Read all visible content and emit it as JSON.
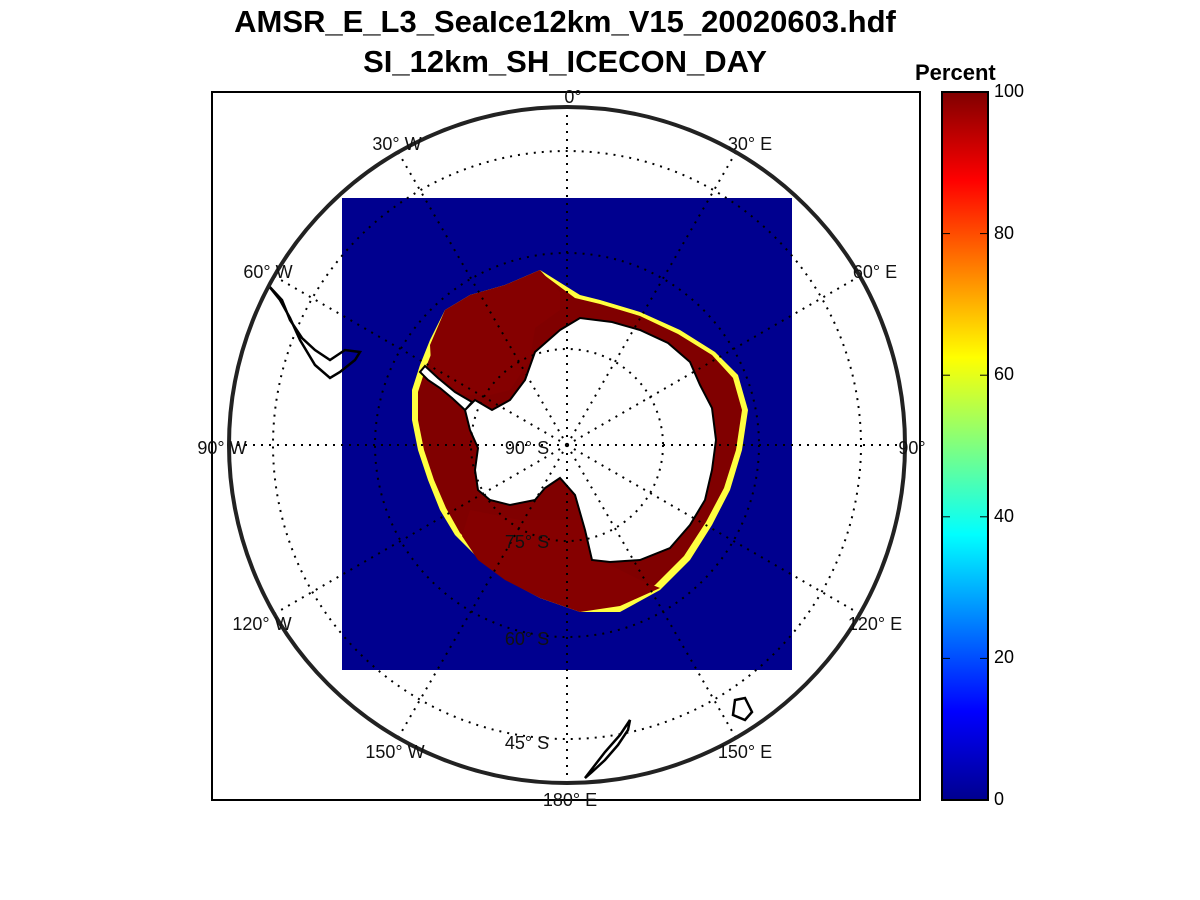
{
  "title": {
    "line1": "AMSR_E_L3_SeaIce12km_V15_20020603.hdf",
    "line2": "SI_12km_SH_ICECON_DAY"
  },
  "colorbar": {
    "label": "Percent",
    "ticks": [
      "100",
      "80",
      "60",
      "40",
      "20",
      "0"
    ],
    "min": 0,
    "max": 100,
    "colormap": "jet"
  },
  "map": {
    "projection": "south-polar-stereographic",
    "meridian_labels": [
      {
        "lon": "0",
        "hem": ""
      },
      {
        "lon": "30",
        "hem": "E"
      },
      {
        "lon": "60",
        "hem": "E"
      },
      {
        "lon": "90",
        "hem": ""
      },
      {
        "lon": "120",
        "hem": "E"
      },
      {
        "lon": "150",
        "hem": "E"
      },
      {
        "lon": "180",
        "hem": "E"
      },
      {
        "lon": "150",
        "hem": "W"
      },
      {
        "lon": "120",
        "hem": "W"
      },
      {
        "lon": "90",
        "hem": "W"
      },
      {
        "lon": "60",
        "hem": "W"
      },
      {
        "lon": "30",
        "hem": "W"
      }
    ],
    "parallel_labels": [
      {
        "lat": "90",
        "hem": "S"
      },
      {
        "lat": "75",
        "hem": "S"
      },
      {
        "lat": "60",
        "hem": "S"
      },
      {
        "lat": "45",
        "hem": "S"
      }
    ],
    "colors": {
      "open_water": "#00008f",
      "ice_full": "#800000",
      "land": "#ffffff",
      "graticule": "#000000"
    }
  }
}
